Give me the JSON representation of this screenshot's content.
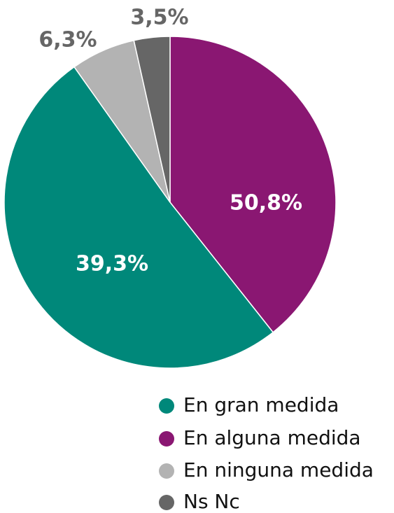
{
  "chart_data": {
    "type": "pie",
    "categories": [
      "En gran medida",
      "En alguna medida",
      "En ninguna medida",
      "Ns Nc"
    ],
    "values": [
      50.8,
      39.3,
      6.3,
      3.5
    ],
    "value_labels": [
      "50,8%",
      "39,3%",
      "6,3%",
      "3,5%"
    ],
    "colors": [
      "#00887a",
      "#8a1772",
      "#b3b3b3",
      "#666666"
    ],
    "legend": "bottom-right"
  }
}
